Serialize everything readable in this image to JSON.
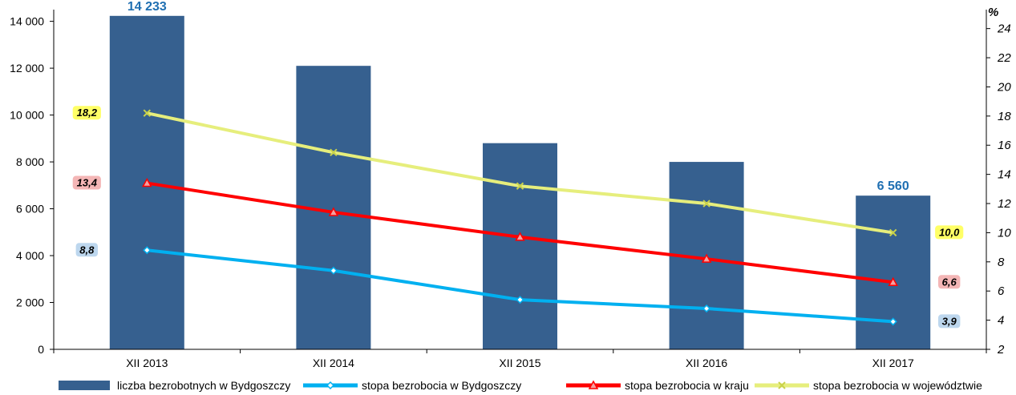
{
  "chart_data": {
    "type": "bar",
    "categories": [
      "XII 2013",
      "XII 2014",
      "XII 2015",
      "XII 2016",
      "XII 2017"
    ],
    "bar_series": {
      "name": "liczba bezrobotnych w Bydgoszczy",
      "values": [
        14233,
        12100,
        8800,
        8000,
        6560
      ],
      "color": "#36608f",
      "axis": "left",
      "labels": [
        "14 233",
        "",
        "",
        "",
        "6 560"
      ]
    },
    "line_series": [
      {
        "name": "stopa bezrobocia w Bydgoszczy",
        "values": [
          8.8,
          7.4,
          5.4,
          4.8,
          3.9
        ],
        "color": "#00b0f0",
        "marker": "diamond",
        "axis": "right",
        "labels": [
          "8,8",
          "",
          "",
          "",
          "3,9"
        ],
        "label_bg": "#bdd7ee"
      },
      {
        "name": "stopa bezrobocia w kraju",
        "values": [
          13.4,
          11.4,
          9.7,
          8.2,
          6.6
        ],
        "color": "#ff0000",
        "marker": "triangle",
        "axis": "right",
        "labels": [
          "13,4",
          "",
          "",
          "",
          "6,6"
        ],
        "label_bg": "#f4b6b6"
      },
      {
        "name": "stopa bezrobocia w województwie",
        "values": [
          18.2,
          15.5,
          13.2,
          12.0,
          10.0
        ],
        "color": "#e6ee7c",
        "marker": "x",
        "axis": "right",
        "labels": [
          "18,2",
          "",
          "",
          "",
          "10,0"
        ],
        "label_bg": "#ffff66"
      }
    ],
    "y_left": {
      "min": 0,
      "max": 14500,
      "ticks": [
        0,
        2000,
        4000,
        6000,
        8000,
        10000,
        12000,
        14000
      ],
      "tick_labels": [
        "0",
        "2 000",
        "4 000",
        "6 000",
        "8 000",
        "10 000",
        "12 000",
        "14 000"
      ]
    },
    "y_right": {
      "min": 2,
      "max": 25.3,
      "ticks": [
        2,
        4,
        6,
        8,
        10,
        12,
        14,
        16,
        18,
        20,
        22,
        24
      ],
      "tick_labels": [
        "2",
        "4",
        "6",
        "8",
        "10",
        "12",
        "14",
        "16",
        "18",
        "20",
        "22",
        "24"
      ],
      "unit": "%"
    },
    "legend_position": "bottom",
    "grid": false
  }
}
